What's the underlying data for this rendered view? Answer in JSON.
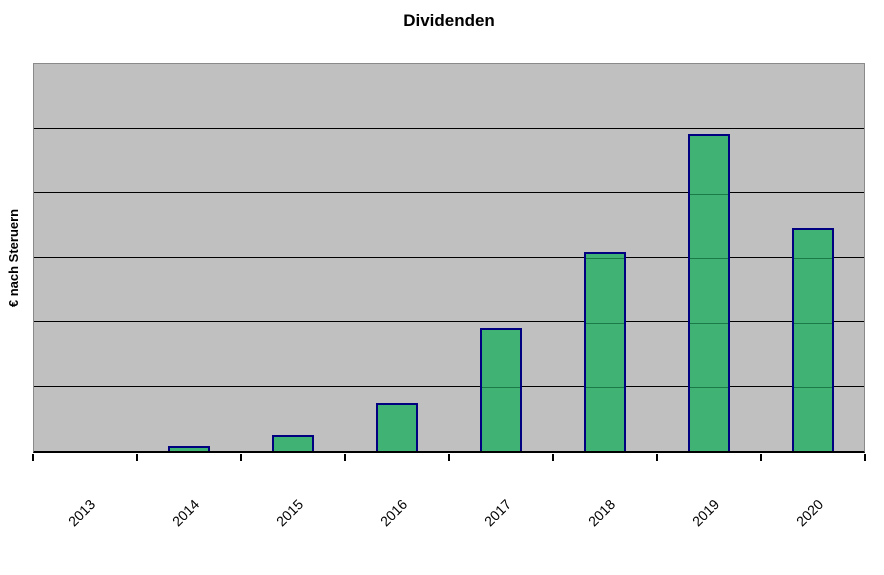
{
  "chart_data": {
    "type": "bar",
    "title": "Dividenden",
    "ylabel": "€ nach Steruern",
    "xlabel": "",
    "categories": [
      "2013",
      "2014",
      "2015",
      "2016",
      "2017",
      "2018",
      "2019",
      "2020"
    ],
    "values": [
      0,
      0.08,
      0.25,
      0.75,
      1.91,
      3.09,
      4.91,
      3.45
    ],
    "ylim": [
      0,
      6
    ],
    "y_tick_labels": "none",
    "gridlines": "horizontal, 5 evenly spaced black lines",
    "legend": "none",
    "x_tick_rotation_deg": 45,
    "series_count": 1
  },
  "colors": {
    "page_bg": "#FFFFFF",
    "plot_bg": "#C0C0C0",
    "plot_border": "#8A8A8A",
    "bar_fill": "#3FB274",
    "bar_border": "#000080",
    "gridline": "#000000",
    "gridline_on_bar": "#1B7A47",
    "axis_line": "#000000",
    "text": "#000000"
  }
}
